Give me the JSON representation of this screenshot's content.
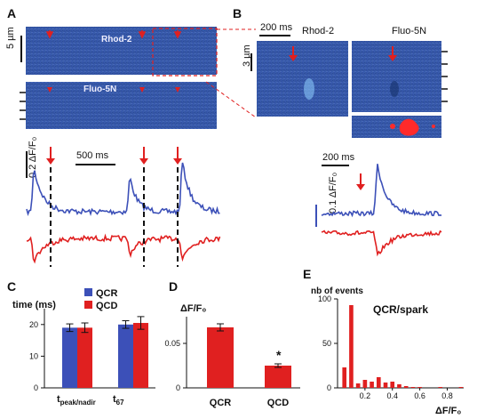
{
  "panels": {
    "A": {
      "letter": "A",
      "scale_um": "5 µm",
      "dye1": "Rhod-2",
      "dye2": "Fluo-5N",
      "trace_scale": "0.2 ΔF/F₀",
      "time_scale": "500 ms"
    },
    "B": {
      "letter": "B",
      "time_scale": "200 ms",
      "dye1": "Rhod-2",
      "dye2": "Fluo-5N",
      "scale_um": "3 µm",
      "time_scale2": "200 ms",
      "trace_scale": "0.1 ΔF/F₀"
    },
    "C": {
      "letter": "C",
      "ylabel": "time (ms)",
      "legend": [
        "QCR",
        "QCD"
      ]
    },
    "D": {
      "letter": "D",
      "ylabel": "ΔF/F₀",
      "significance": "*"
    },
    "E": {
      "letter": "E",
      "ylabel": "nb of events",
      "title": "QCR/spark",
      "xlabel": "ΔF/F₀"
    }
  },
  "colors": {
    "qcr": "#3c50b8",
    "qcd": "#e02020",
    "arrow": "#e02020",
    "image_bg": "#3a5aa8"
  },
  "chart_data": [
    {
      "type": "bar",
      "panel": "C",
      "categories": [
        "t_peak/nadir",
        "t_67"
      ],
      "category_labels": [
        {
          "main": "t",
          "sub": "peak/nadir"
        },
        {
          "main": "t",
          "sub": "67"
        }
      ],
      "series": [
        {
          "name": "QCR",
          "values": [
            19,
            20
          ],
          "errors": [
            1.2,
            1.2
          ]
        },
        {
          "name": "QCD",
          "values": [
            19,
            20.5
          ],
          "errors": [
            1.5,
            2.0
          ]
        }
      ],
      "ylim": [
        0,
        25
      ],
      "yticks": [
        0,
        10,
        20
      ],
      "ylabel": "time (ms)"
    },
    {
      "type": "bar",
      "panel": "D",
      "categories": [
        "QCR",
        "QCD"
      ],
      "values": [
        0.068,
        0.025
      ],
      "errors": [
        0.004,
        0.002
      ],
      "ylim": [
        0,
        0.08
      ],
      "yticks": [
        0,
        0.05
      ],
      "ytick_labels": [
        "0",
        "0.05"
      ],
      "ylabel": "ΔF/F₀"
    },
    {
      "type": "bar",
      "panel": "E",
      "title": "QCR/spark",
      "ylabel": "nb of events",
      "xlabel": "ΔF/F₀",
      "x": [
        0.05,
        0.1,
        0.15,
        0.2,
        0.25,
        0.3,
        0.35,
        0.4,
        0.45,
        0.5,
        0.55,
        0.6,
        0.65,
        0.7,
        0.75,
        0.8,
        0.85,
        0.9
      ],
      "values": [
        23,
        93,
        5,
        9,
        7,
        12,
        6,
        7,
        4,
        2,
        1,
        1,
        0,
        0,
        1,
        0,
        0,
        1
      ],
      "xlim": [
        0,
        0.92
      ],
      "xticks": [
        0.2,
        0.4,
        0.6,
        0.8
      ],
      "ylim": [
        0,
        100
      ],
      "yticks": [
        0,
        50,
        100
      ]
    }
  ]
}
